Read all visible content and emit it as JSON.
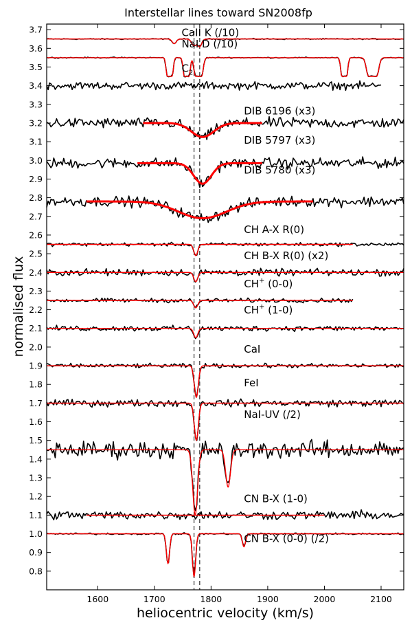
{
  "chart_data": {
    "type": "line",
    "title": "Interstellar lines toward SN2008fp",
    "xlabel": "heliocentric velocity (km/s)",
    "ylabel": "normalised flux",
    "xlim": [
      1510,
      2140
    ],
    "ylim": [
      0.7,
      3.73
    ],
    "xticks": [
      "1600",
      "1700",
      "1800",
      "1900",
      "2000",
      "2100"
    ],
    "yticks": [
      "0.8",
      "0.9",
      "1.0",
      "1.1",
      "1.2",
      "1.3",
      "1.4",
      "1.5",
      "1.6",
      "1.7",
      "1.8",
      "1.9",
      "2.0",
      "2.1",
      "2.2",
      "2.3",
      "2.4",
      "2.5",
      "2.6",
      "2.7",
      "2.8",
      "2.9",
      "3.0",
      "3.1",
      "3.2",
      "3.3",
      "3.4",
      "3.5",
      "3.6",
      "3.7"
    ],
    "grid": false,
    "data_color": "#000000",
    "fit_color": "#ff0000",
    "reference_velocities": [
      1770,
      1780
    ],
    "series": [
      {
        "name": "CaII K (/10)",
        "label_main": "CaII K (/10)",
        "label_sub": "",
        "label_suffix": "",
        "label_x": 1748,
        "label_y": 3.665,
        "baseline": 3.65,
        "noise": 0.003,
        "data_range": [
          1510,
          2140
        ],
        "fit_range": [
          1510,
          2140
        ],
        "components": [
          {
            "v": 1735,
            "depth": 0.025,
            "width": 5
          },
          {
            "v": 1770,
            "depth": 0.035,
            "width": 6
          },
          {
            "v": 1780,
            "depth": 0.04,
            "width": 5
          }
        ]
      },
      {
        "name": "NaI D (/10)",
        "label_main": "NaI D (/10)",
        "label_sub": "",
        "label_suffix": "",
        "label_x": 1748,
        "label_y": 3.605,
        "baseline": 3.55,
        "noise": 0.003,
        "data_range": [
          1510,
          2140
        ],
        "fit_range": [
          1510,
          2140
        ],
        "components": [
          {
            "v": 1727,
            "depth": 0.1,
            "width": 7,
            "flat": true
          },
          {
            "v": 1757,
            "depth": 0.1,
            "width": 7,
            "flat": true
          },
          {
            "v": 1778,
            "depth": 0.1,
            "width": 9,
            "flat": true
          },
          {
            "v": 2035,
            "depth": 0.1,
            "width": 7,
            "flat": true
          },
          {
            "v": 2085,
            "depth": 0.1,
            "width": 12,
            "flat": true
          }
        ]
      },
      {
        "name": "C2",
        "label_main": "C",
        "label_sub": "2",
        "label_suffix": "",
        "label_x": 1748,
        "label_y": 3.475,
        "baseline": 3.4,
        "noise": 0.022,
        "data_range": [
          1510,
          2100
        ],
        "fit_range": null,
        "components": []
      },
      {
        "name": "DIB 6196 (x3)",
        "label_main": "DIB 6196 (x3)",
        "label_sub": "",
        "label_suffix": "",
        "label_x": 1858,
        "label_y": 3.245,
        "baseline": 3.2,
        "noise": 0.03,
        "data_range": [
          1510,
          2140
        ],
        "fit_range": [
          1680,
          1890
        ],
        "components": [
          {
            "v": 1785,
            "depth": 0.075,
            "width": 28
          }
        ]
      },
      {
        "name": "DIB 5797 (x3)",
        "label_main": "DIB 5797 (x3)",
        "label_sub": "",
        "label_suffix": "",
        "label_x": 1858,
        "label_y": 3.09,
        "baseline": 2.985,
        "noise": 0.03,
        "data_range": [
          1510,
          2140
        ],
        "fit_range": [
          1670,
          1890
        ],
        "components": [
          {
            "v": 1785,
            "depth": 0.11,
            "width": 22
          }
        ]
      },
      {
        "name": "DIB 5780 (x3)",
        "label_main": "DIB 5780 (x3)",
        "label_sub": "",
        "label_suffix": "",
        "label_x": 1858,
        "label_y": 2.93,
        "baseline": 2.78,
        "noise": 0.03,
        "data_range": [
          1510,
          2140
        ],
        "fit_range": [
          1580,
          1980
        ],
        "components": [
          {
            "v": 1785,
            "depth": 0.09,
            "width": 60
          }
        ]
      },
      {
        "name": "CH A-X R(0)",
        "label_main": "CH A-X R(0)",
        "label_sub": "",
        "label_suffix": "",
        "label_x": 1858,
        "label_y": 2.61,
        "baseline": 2.55,
        "noise": 0.01,
        "data_range": [
          1510,
          2140
        ],
        "fit_range": [
          1510,
          2050
        ],
        "components": [
          {
            "v": 1773,
            "depth": 0.06,
            "width": 5
          }
        ]
      },
      {
        "name": "CH B-X R(0) (x2)",
        "label_main": "CH B-X R(0) (x2)",
        "label_sub": "",
        "label_suffix": "",
        "label_x": 1858,
        "label_y": 2.47,
        "baseline": 2.4,
        "noise": 0.02,
        "data_range": [
          1510,
          2140
        ],
        "fit_range": [
          1510,
          2140
        ],
        "components": [
          {
            "v": 1773,
            "depth": 0.05,
            "width": 5
          }
        ]
      },
      {
        "name": "CH- (0-0)",
        "label_main": "CH",
        "label_sub": "",
        "label_suffix": " (0-0)",
        "label_sup": "+",
        "label_x": 1858,
        "label_y": 2.32,
        "baseline": 2.25,
        "noise": 0.012,
        "data_range": [
          1510,
          2050
        ],
        "fit_range": [
          1510,
          2050
        ],
        "components": [
          {
            "v": 1773,
            "depth": 0.04,
            "width": 5
          }
        ]
      },
      {
        "name": "CH- (1-0)",
        "label_main": "CH",
        "label_sub": "",
        "label_suffix": " (1-0)",
        "label_sup": "+",
        "label_x": 1858,
        "label_y": 2.18,
        "baseline": 2.1,
        "noise": 0.015,
        "data_range": [
          1510,
          2140
        ],
        "fit_range": [
          1510,
          2140
        ],
        "components": [
          {
            "v": 1773,
            "depth": 0.05,
            "width": 5
          }
        ]
      },
      {
        "name": "CaI",
        "label_main": "CaI",
        "label_sub": "",
        "label_suffix": "",
        "label_x": 1858,
        "label_y": 1.97,
        "baseline": 1.9,
        "noise": 0.012,
        "data_range": [
          1510,
          2140
        ],
        "fit_range": [
          1510,
          2140
        ],
        "components": [
          {
            "v": 1774,
            "depth": 0.17,
            "width": 5
          }
        ]
      },
      {
        "name": "FeI",
        "label_main": "FeI",
        "label_sub": "",
        "label_suffix": "",
        "label_x": 1858,
        "label_y": 1.79,
        "baseline": 1.7,
        "noise": 0.02,
        "data_range": [
          1510,
          2140
        ],
        "fit_range": [
          1510,
          2140
        ],
        "components": [
          {
            "v": 1774,
            "depth": 0.2,
            "width": 5
          }
        ]
      },
      {
        "name": "NaI-UV (/2)",
        "label_main": "NaI-UV (/2)",
        "label_sub": "",
        "label_suffix": "",
        "label_x": 1858,
        "label_y": 1.62,
        "baseline": 1.45,
        "noise": 0.05,
        "data_range": [
          1510,
          2140
        ],
        "fit_range": [
          1510,
          2140
        ],
        "components": [
          {
            "v": 1772,
            "depth": 0.35,
            "width": 6
          },
          {
            "v": 1830,
            "depth": 0.2,
            "width": 6
          }
        ]
      },
      {
        "name": "CN B-X (1-0)",
        "label_main": "CN B-X (1-0)",
        "label_sub": "",
        "label_suffix": "",
        "label_x": 1858,
        "label_y": 1.17,
        "baseline": 1.1,
        "noise": 0.025,
        "data_range": [
          1510,
          2140
        ],
        "fit_range": [
          1580,
          2000
        ],
        "components": []
      },
      {
        "name": "CN B-X (0-0) (/2)",
        "label_main": "CN B-X (0-0) (/2)",
        "label_sub": "",
        "label_suffix": "",
        "label_x": 1858,
        "label_y": 0.955,
        "baseline": 1.0,
        "noise": 0.005,
        "data_range": [
          1510,
          2140
        ],
        "fit_range": [
          1510,
          2140
        ],
        "components": [
          {
            "v": 1724,
            "depth": 0.16,
            "width": 4
          },
          {
            "v": 1770,
            "depth": 0.23,
            "width": 4
          },
          {
            "v": 1858,
            "depth": 0.07,
            "width": 4
          }
        ]
      }
    ]
  }
}
